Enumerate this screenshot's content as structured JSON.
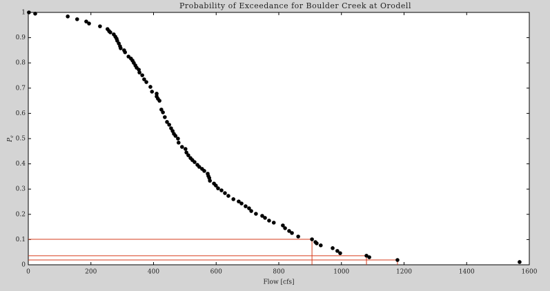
{
  "chart_data": {
    "type": "scatter",
    "title": "Probability of Exceedance for Boulder Creek at Orodell",
    "xlabel": "Flow [cfs]",
    "ylabel": {
      "base": "P",
      "sub": "e"
    },
    "xlim": [
      0,
      1600
    ],
    "xticks": [
      0,
      200,
      400,
      600,
      800,
      1000,
      1200,
      1400,
      1600
    ],
    "ylim": [
      0,
      1
    ],
    "yticks": [
      0,
      0.1,
      0.2,
      0.3,
      0.4,
      0.5,
      0.6,
      0.7,
      0.8,
      0.9,
      1
    ],
    "series": [
      {
        "color": "#000000",
        "x": [
          2,
          22,
          126,
          156,
          185,
          194,
          229,
          253,
          258,
          262,
          273,
          278,
          282,
          284,
          289,
          293,
          295,
          306,
          309,
          320,
          328,
          333,
          337,
          342,
          346,
          353,
          355,
          364,
          370,
          377,
          390,
          395,
          410,
          410,
          414,
          419,
          425,
          430,
          436,
          443,
          450,
          456,
          461,
          465,
          470,
          478,
          480,
          491,
          502,
          505,
          511,
          518,
          524,
          531,
          540,
          546,
          555,
          562,
          573,
          575,
          578,
          580,
          593,
          599,
          606,
          617,
          628,
          639,
          655,
          672,
          681,
          694,
          705,
          712,
          727,
          747,
          756,
          769,
          784,
          813,
          820,
          833,
          842,
          862,
          906,
          917,
          921,
          934,
          972,
          987,
          996,
          1080,
          1089,
          1179,
          1569
        ],
        "values": [
          1.0,
          0.995,
          0.984,
          0.973,
          0.964,
          0.956,
          0.945,
          0.934,
          0.926,
          0.921,
          0.913,
          0.904,
          0.896,
          0.888,
          0.877,
          0.866,
          0.858,
          0.85,
          0.842,
          0.825,
          0.817,
          0.809,
          0.8,
          0.79,
          0.781,
          0.773,
          0.762,
          0.751,
          0.735,
          0.724,
          0.705,
          0.686,
          0.678,
          0.667,
          0.658,
          0.65,
          0.615,
          0.604,
          0.585,
          0.566,
          0.555,
          0.541,
          0.53,
          0.519,
          0.511,
          0.5,
          0.484,
          0.467,
          0.459,
          0.445,
          0.434,
          0.423,
          0.415,
          0.407,
          0.396,
          0.388,
          0.38,
          0.372,
          0.361,
          0.352,
          0.344,
          0.333,
          0.322,
          0.314,
          0.303,
          0.295,
          0.284,
          0.273,
          0.26,
          0.251,
          0.243,
          0.232,
          0.224,
          0.213,
          0.202,
          0.194,
          0.186,
          0.175,
          0.167,
          0.156,
          0.145,
          0.134,
          0.126,
          0.112,
          0.101,
          0.09,
          0.085,
          0.077,
          0.066,
          0.055,
          0.046,
          0.036,
          0.03,
          0.019,
          0.011
        ]
      }
    ],
    "guides": {
      "color": "#d63a1a",
      "x": [
        906,
        1080,
        1179
      ],
      "values": [
        0.101,
        0.036,
        0.019
      ]
    }
  }
}
